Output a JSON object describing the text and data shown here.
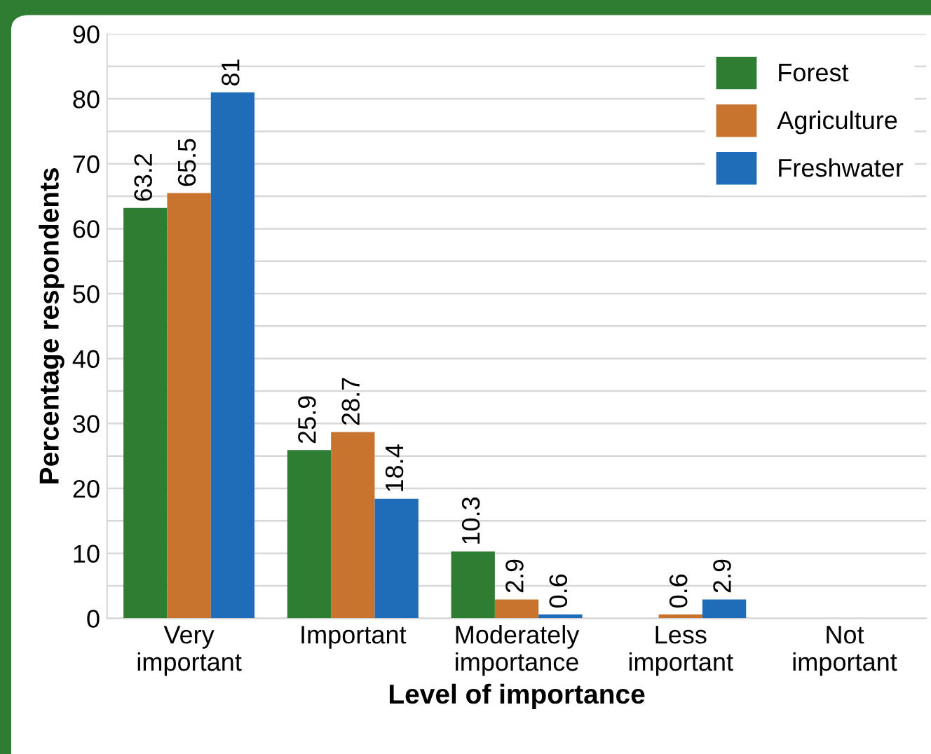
{
  "chart_data": {
    "type": "bar",
    "xlabel": "Level of importance",
    "ylabel": "Percentage respondents",
    "categories": [
      "Very\nimportant",
      "Important",
      "Moderately\nimportance",
      "Less\nimportant",
      "Not\nimportant"
    ],
    "series": [
      {
        "name": "Forest",
        "color": "#2e7d32",
        "values": [
          63.2,
          25.9,
          10.3,
          null,
          null
        ]
      },
      {
        "name": "Agriculture",
        "color": "#c8742f",
        "values": [
          65.5,
          28.7,
          2.9,
          0.6,
          null
        ]
      },
      {
        "name": "Freshwater",
        "color": "#1f6db8",
        "values": [
          81,
          18.4,
          0.6,
          2.9,
          null
        ]
      }
    ],
    "ylim": [
      0,
      90
    ],
    "yticks": [
      0,
      {
        "value": 5,
        "label": null
      },
      10,
      {
        "value": 15,
        "label": null
      },
      20,
      {
        "value": 25,
        "label": null
      },
      30,
      {
        "value": 35,
        "label": null
      },
      40,
      {
        "value": 45,
        "label": null
      },
      50,
      {
        "value": 55,
        "label": null
      },
      60,
      {
        "value": 65,
        "label": null
      },
      70,
      {
        "value": 75,
        "label": null
      },
      80,
      {
        "value": 85,
        "label": null
      },
      90
    ],
    "grid": "y",
    "legend": "top right",
    "data_labels": true
  }
}
